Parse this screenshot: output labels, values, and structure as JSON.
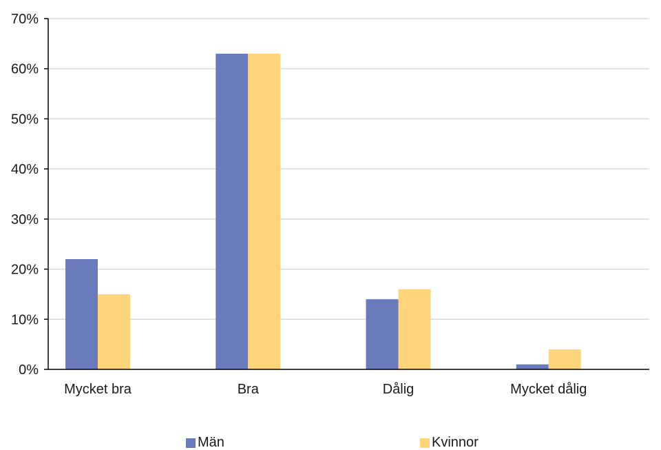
{
  "chart_data": {
    "type": "bar",
    "categories": [
      "Mycket bra",
      "Bra",
      "Dålig",
      "Mycket dålig"
    ],
    "series": [
      {
        "name": "Män",
        "values": [
          22,
          63,
          14,
          1
        ],
        "color": "#6a7bbd"
      },
      {
        "name": "Kvinnor",
        "values": [
          15,
          63,
          16,
          4
        ],
        "color": "#ffd47a"
      }
    ],
    "ylim": [
      0,
      70
    ],
    "yticks": [
      "0%",
      "10%",
      "20%",
      "30%",
      "40%",
      "50%",
      "60%",
      "70%"
    ],
    "ytick_values": [
      0,
      10,
      20,
      30,
      40,
      50,
      60,
      70
    ],
    "grid": true,
    "legend_position": "bottom",
    "gridline_color": "#d9d9d9",
    "axis_color": "#000000"
  }
}
